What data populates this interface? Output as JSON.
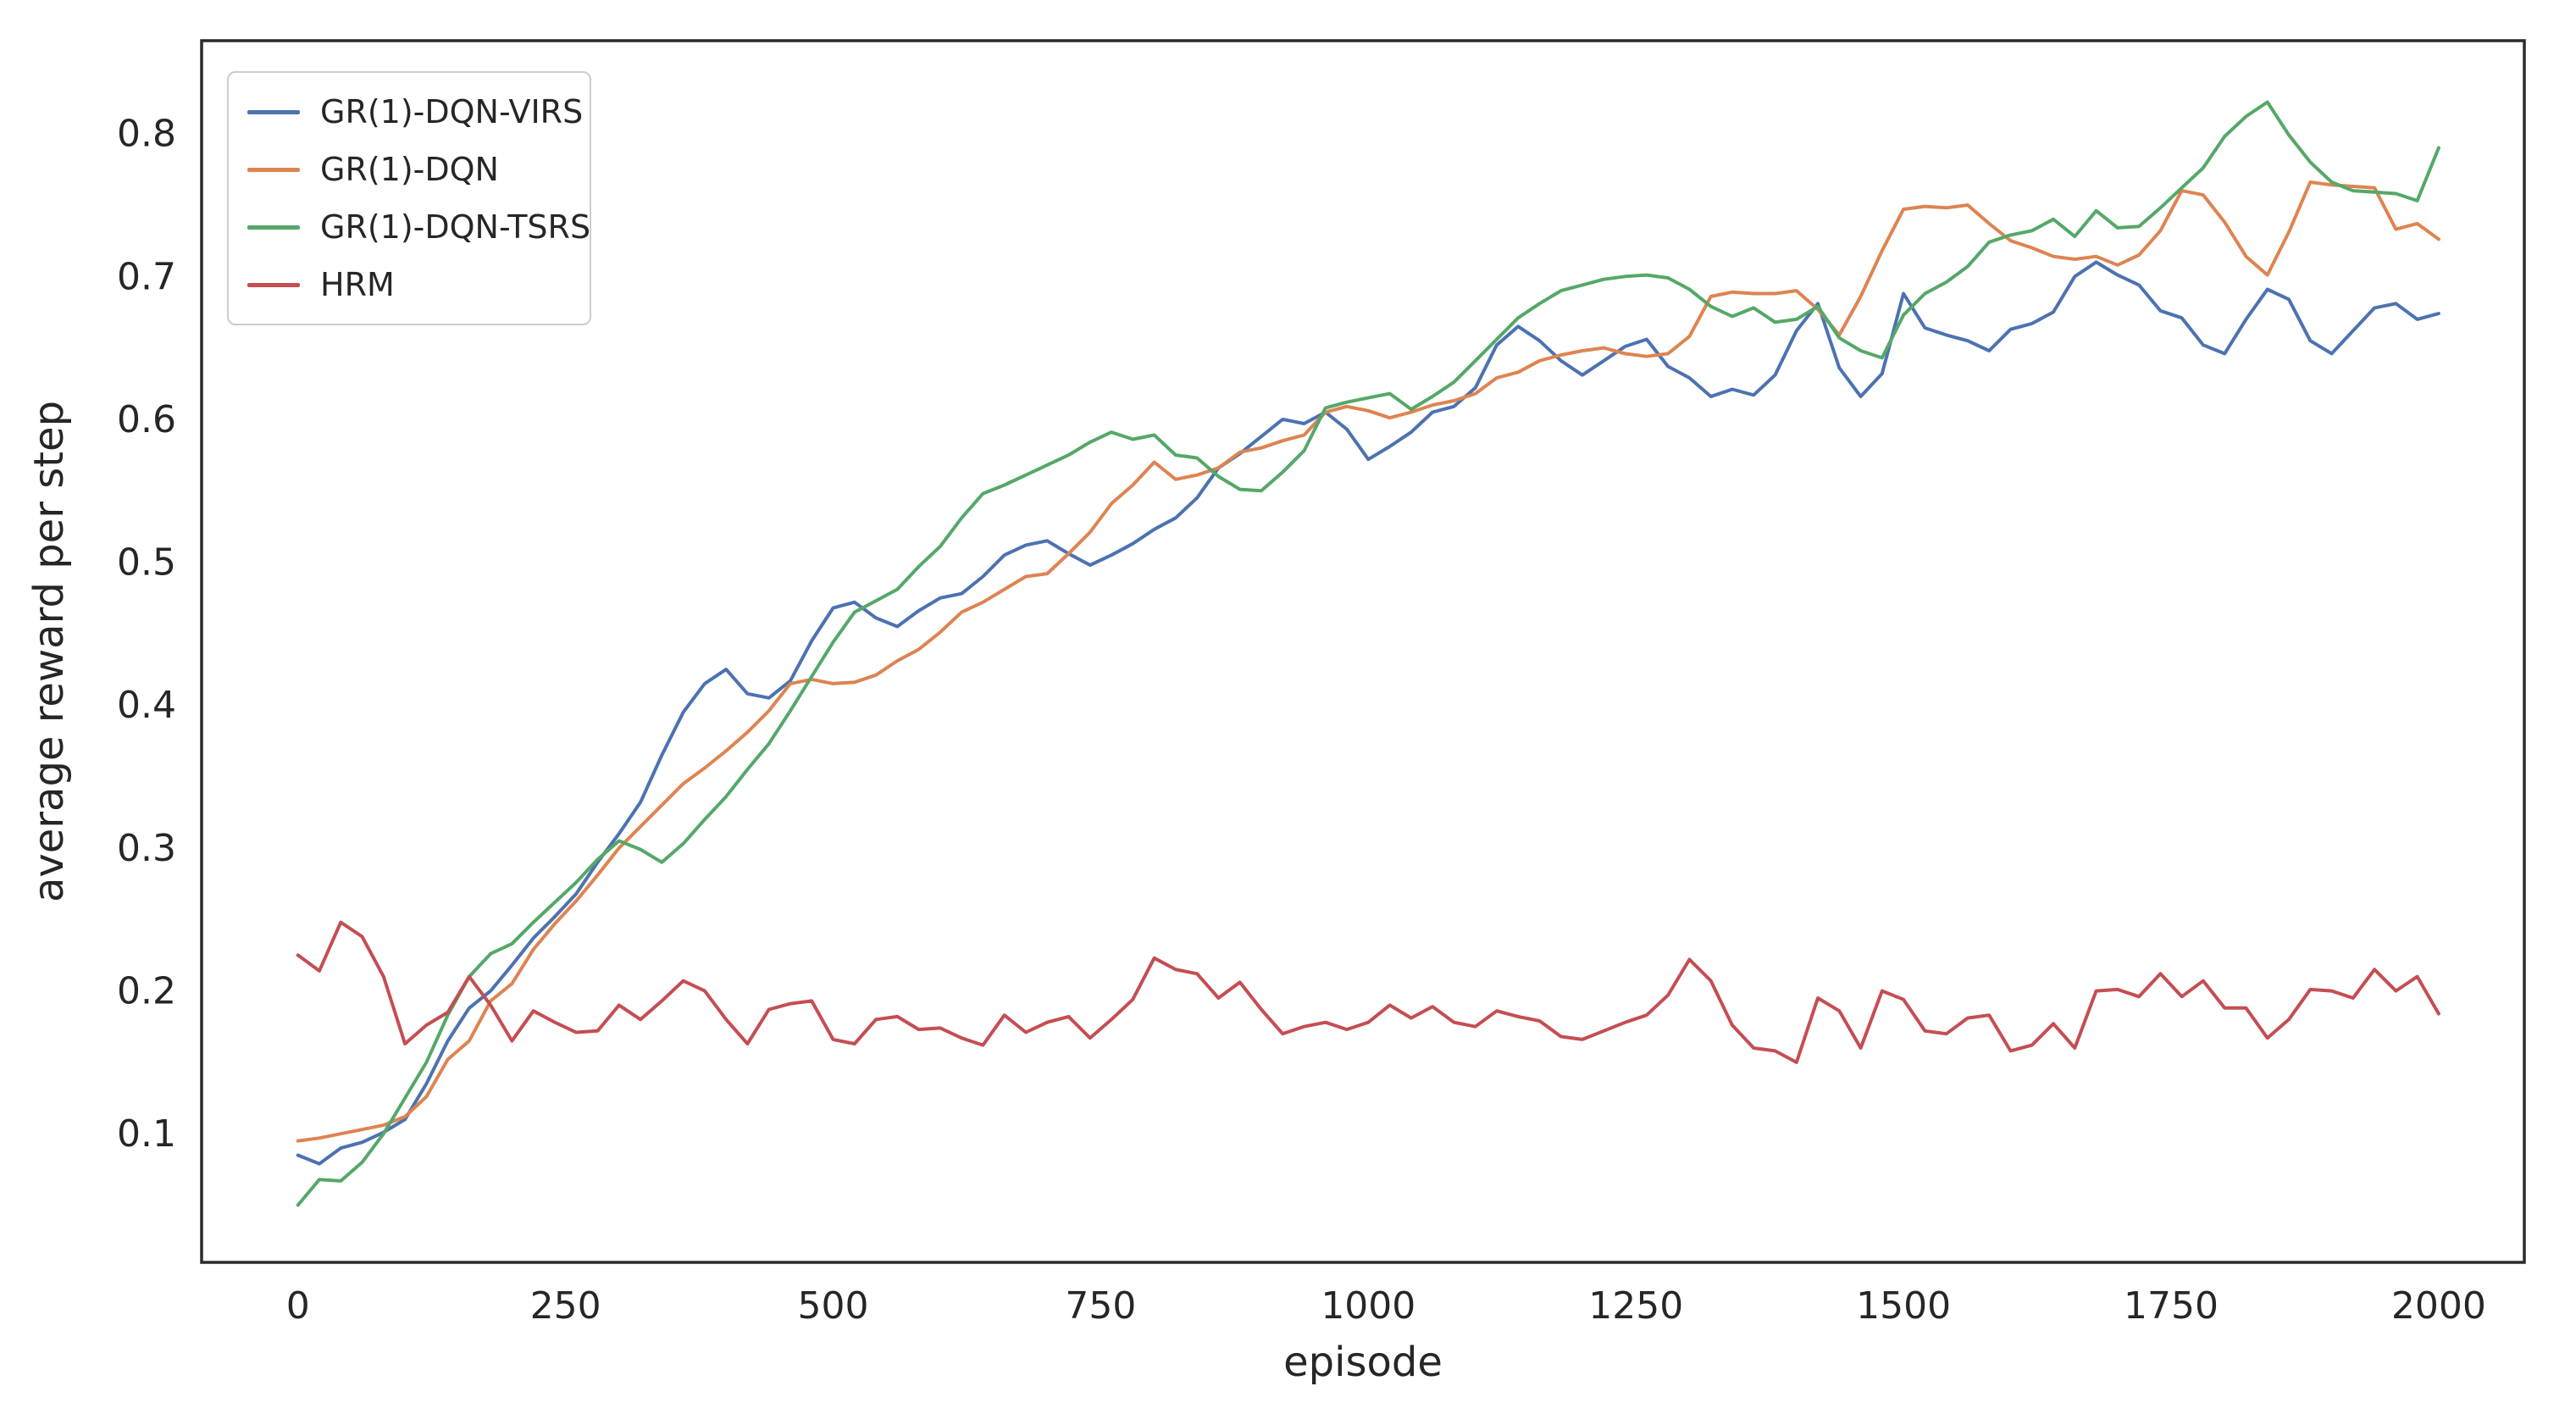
{
  "chart_data": {
    "type": "line",
    "title": "",
    "xlabel": "episode",
    "ylabel": "average reward per step",
    "x_ticks": [
      0,
      250,
      500,
      750,
      1000,
      1250,
      1500,
      1750,
      2000
    ],
    "y_ticks": [
      0.1,
      0.2,
      0.3,
      0.4,
      0.5,
      0.6,
      0.7,
      0.8
    ],
    "xlim": [
      -90,
      2080
    ],
    "ylim": [
      0.01,
      0.865
    ],
    "grid": false,
    "legend_position": "upper left",
    "x_start": 0,
    "x_step": 20,
    "colors": {
      "spine": "#2b2b2b",
      "tick_text": "#262626",
      "legend_border": "#cccccc"
    },
    "series": [
      {
        "name": "GR(1)-DQN-VIRS",
        "color": "#4C72B0",
        "values": [
          0.085,
          0.079,
          0.09,
          0.094,
          0.101,
          0.11,
          0.135,
          0.165,
          0.188,
          0.2,
          0.218,
          0.237,
          0.252,
          0.268,
          0.29,
          0.31,
          0.332,
          0.365,
          0.395,
          0.415,
          0.425,
          0.408,
          0.405,
          0.417,
          0.445,
          0.468,
          0.472,
          0.461,
          0.455,
          0.466,
          0.475,
          0.478,
          0.49,
          0.505,
          0.512,
          0.515,
          0.506,
          0.498,
          0.505,
          0.513,
          0.523,
          0.531,
          0.545,
          0.566,
          0.576,
          0.588,
          0.6,
          0.597,
          0.605,
          0.593,
          0.572,
          0.581,
          0.591,
          0.605,
          0.609,
          0.622,
          0.652,
          0.665,
          0.655,
          0.641,
          0.631,
          0.641,
          0.651,
          0.656,
          0.637,
          0.629,
          0.616,
          0.621,
          0.617,
          0.631,
          0.662,
          0.681,
          0.636,
          0.616,
          0.632,
          0.688,
          0.664,
          0.659,
          0.655,
          0.648,
          0.663,
          0.667,
          0.675,
          0.7,
          0.71,
          0.701,
          0.694,
          0.676,
          0.671,
          0.652,
          0.646,
          0.67,
          0.691,
          0.684,
          0.655,
          0.646,
          0.662,
          0.678,
          0.681,
          0.67,
          0.674
        ]
      },
      {
        "name": "GR(1)-DQN",
        "color": "#DD8452",
        "values": [
          0.095,
          0.097,
          0.1,
          0.103,
          0.106,
          0.112,
          0.126,
          0.152,
          0.165,
          0.193,
          0.205,
          0.229,
          0.247,
          0.263,
          0.281,
          0.3,
          0.315,
          0.33,
          0.345,
          0.356,
          0.368,
          0.381,
          0.396,
          0.415,
          0.418,
          0.415,
          0.416,
          0.421,
          0.431,
          0.439,
          0.451,
          0.465,
          0.472,
          0.481,
          0.49,
          0.492,
          0.506,
          0.521,
          0.541,
          0.554,
          0.57,
          0.558,
          0.561,
          0.566,
          0.577,
          0.58,
          0.585,
          0.589,
          0.605,
          0.609,
          0.606,
          0.601,
          0.605,
          0.61,
          0.613,
          0.618,
          0.629,
          0.633,
          0.641,
          0.645,
          0.648,
          0.65,
          0.646,
          0.644,
          0.646,
          0.658,
          0.686,
          0.689,
          0.688,
          0.688,
          0.69,
          0.677,
          0.659,
          0.686,
          0.718,
          0.747,
          0.749,
          0.748,
          0.75,
          0.737,
          0.725,
          0.72,
          0.714,
          0.712,
          0.714,
          0.708,
          0.715,
          0.732,
          0.76,
          0.757,
          0.738,
          0.714,
          0.701,
          0.731,
          0.766,
          0.764,
          0.763,
          0.762,
          0.733,
          0.737,
          0.726
        ]
      },
      {
        "name": "GR(1)-DQN-TSRS",
        "color": "#55A868",
        "values": [
          0.05,
          0.068,
          0.067,
          0.08,
          0.1,
          0.125,
          0.15,
          0.183,
          0.21,
          0.226,
          0.233,
          0.248,
          0.262,
          0.276,
          0.292,
          0.305,
          0.299,
          0.29,
          0.303,
          0.32,
          0.336,
          0.355,
          0.373,
          0.396,
          0.42,
          0.444,
          0.465,
          0.473,
          0.481,
          0.497,
          0.511,
          0.531,
          0.548,
          0.554,
          0.561,
          0.568,
          0.575,
          0.584,
          0.591,
          0.586,
          0.589,
          0.575,
          0.573,
          0.56,
          0.551,
          0.55,
          0.563,
          0.578,
          0.608,
          0.612,
          0.615,
          0.618,
          0.607,
          0.616,
          0.626,
          0.641,
          0.656,
          0.671,
          0.681,
          0.69,
          0.694,
          0.698,
          0.7,
          0.701,
          0.699,
          0.691,
          0.679,
          0.672,
          0.678,
          0.668,
          0.67,
          0.679,
          0.657,
          0.648,
          0.643,
          0.673,
          0.688,
          0.696,
          0.707,
          0.724,
          0.729,
          0.732,
          0.74,
          0.728,
          0.746,
          0.734,
          0.735,
          0.748,
          0.762,
          0.776,
          0.798,
          0.812,
          0.822,
          0.799,
          0.78,
          0.766,
          0.76,
          0.759,
          0.758,
          0.753,
          0.79
        ]
      },
      {
        "name": "HRM",
        "color": "#C44E52",
        "values": [
          0.225,
          0.214,
          0.248,
          0.238,
          0.21,
          0.163,
          0.176,
          0.185,
          0.21,
          0.19,
          0.165,
          0.186,
          0.178,
          0.171,
          0.172,
          0.19,
          0.18,
          0.193,
          0.207,
          0.2,
          0.18,
          0.163,
          0.187,
          0.191,
          0.193,
          0.166,
          0.163,
          0.18,
          0.182,
          0.173,
          0.174,
          0.167,
          0.162,
          0.183,
          0.171,
          0.178,
          0.182,
          0.167,
          0.18,
          0.194,
          0.223,
          0.215,
          0.212,
          0.195,
          0.206,
          0.187,
          0.17,
          0.175,
          0.178,
          0.173,
          0.178,
          0.19,
          0.181,
          0.189,
          0.178,
          0.175,
          0.186,
          0.182,
          0.179,
          0.168,
          0.166,
          0.172,
          0.178,
          0.183,
          0.197,
          0.222,
          0.207,
          0.176,
          0.16,
          0.158,
          0.15,
          0.195,
          0.186,
          0.16,
          0.2,
          0.194,
          0.172,
          0.17,
          0.181,
          0.183,
          0.158,
          0.162,
          0.177,
          0.16,
          0.2,
          0.201,
          0.196,
          0.212,
          0.196,
          0.207,
          0.188,
          0.188,
          0.167,
          0.18,
          0.201,
          0.2,
          0.195,
          0.215,
          0.2,
          0.21,
          0.184
        ]
      }
    ]
  }
}
